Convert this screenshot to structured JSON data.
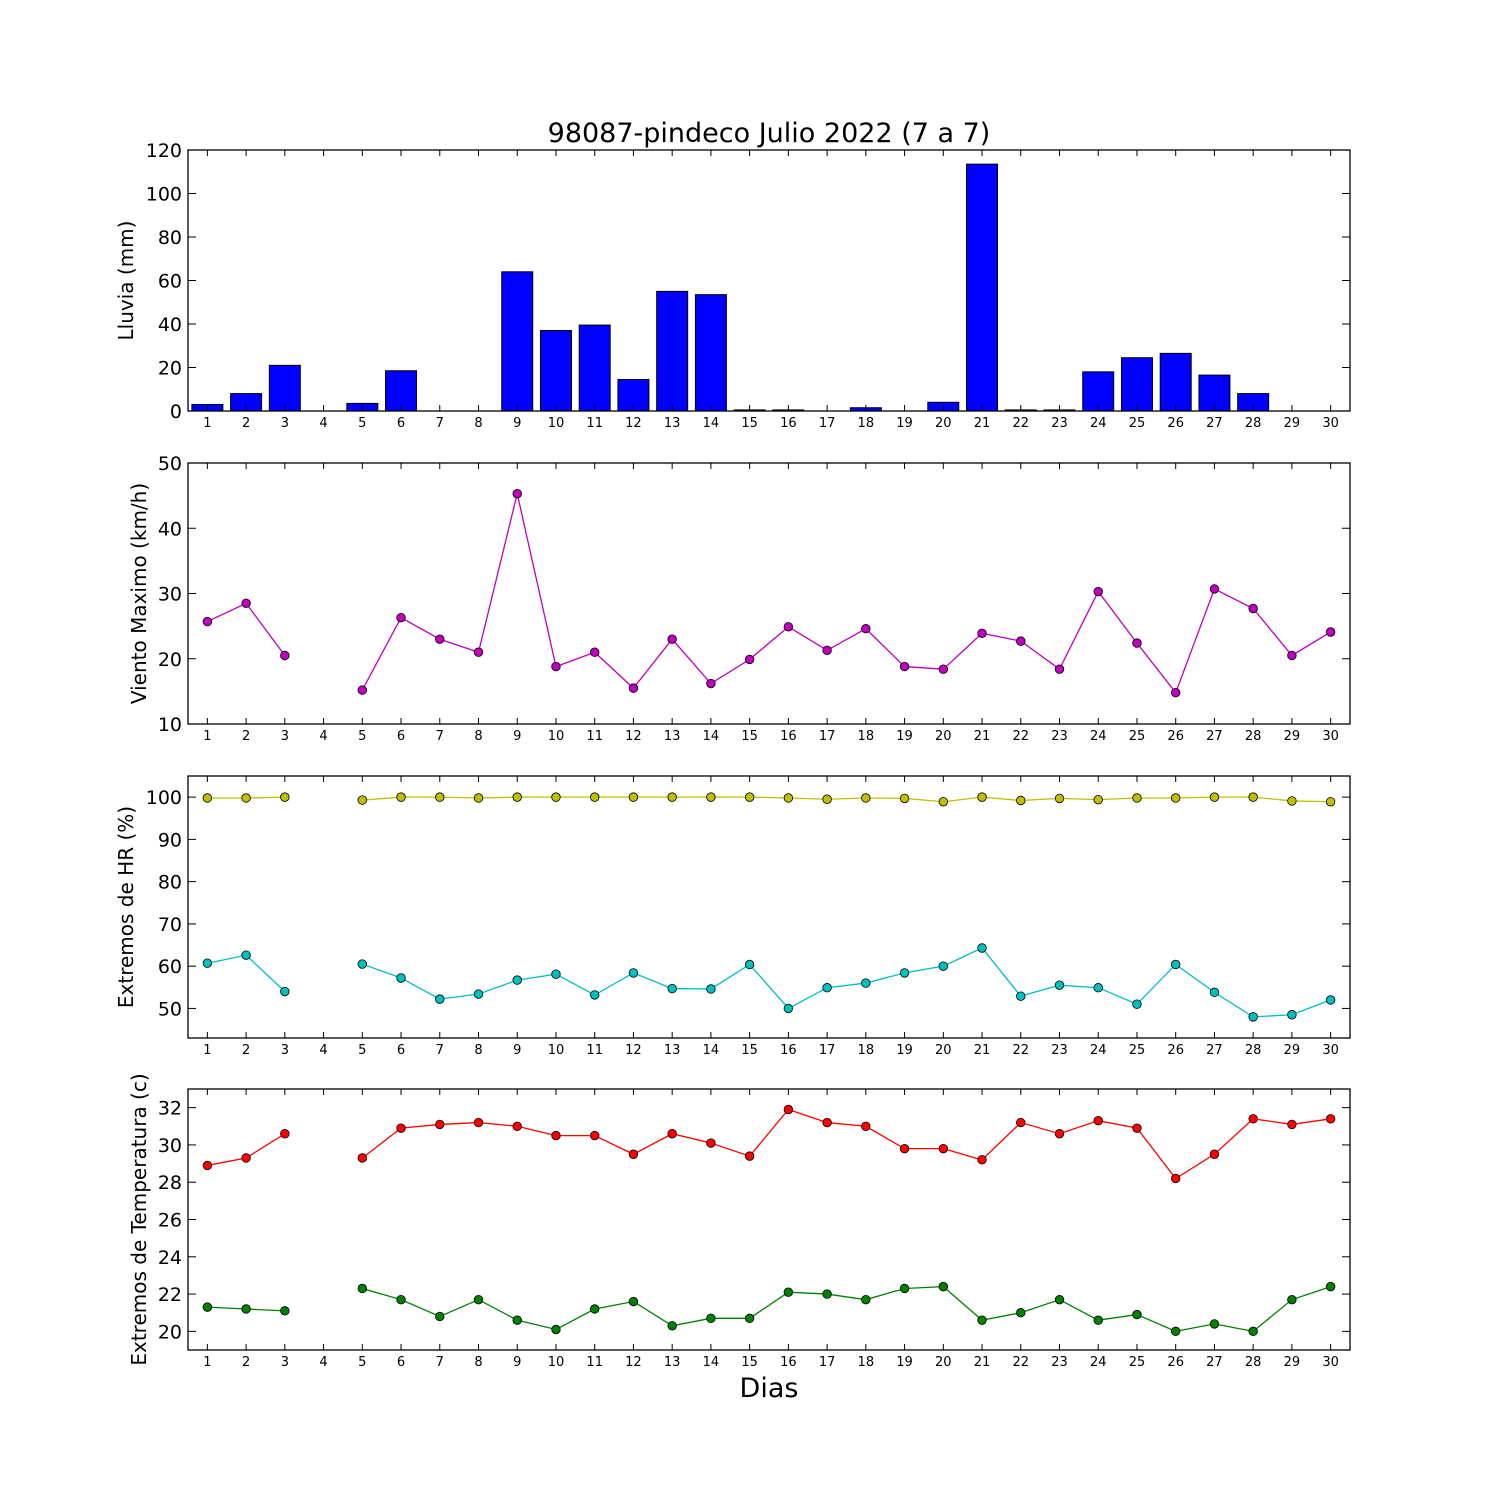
{
  "title": "98087-pindeco Julio 2022  (7 a 7)",
  "xlabel": "Dias",
  "chart_data": [
    {
      "type": "bar",
      "ylabel": "Lluvia (mm)",
      "ylim": [
        0,
        120
      ],
      "yticks": [
        0,
        20,
        40,
        60,
        80,
        100,
        120
      ],
      "x": [
        1,
        2,
        3,
        4,
        5,
        6,
        7,
        8,
        9,
        10,
        11,
        12,
        13,
        14,
        15,
        16,
        17,
        18,
        19,
        20,
        21,
        22,
        23,
        24,
        25,
        26,
        27,
        28,
        29,
        30
      ],
      "series": [
        {
          "color": "#0000ff",
          "values": [
            3,
            8,
            21,
            0,
            3.5,
            18.5,
            0,
            0,
            64,
            37,
            39.5,
            14.5,
            55,
            53.5,
            0.5,
            0.5,
            0,
            1.5,
            0,
            4,
            113.5,
            0.5,
            0.5,
            18,
            24.5,
            26.5,
            16.5,
            8,
            0,
            0
          ]
        }
      ]
    },
    {
      "type": "line",
      "ylabel": "Viento Maximo (km/h)",
      "ylim": [
        10,
        50
      ],
      "yticks": [
        10,
        20,
        30,
        40,
        50
      ],
      "x": [
        1,
        2,
        3,
        4,
        5,
        6,
        7,
        8,
        9,
        10,
        11,
        12,
        13,
        14,
        15,
        16,
        17,
        18,
        19,
        20,
        21,
        22,
        23,
        24,
        25,
        26,
        27,
        28,
        29,
        30
      ],
      "series": [
        {
          "color": "#bf00bf",
          "values": [
            25.7,
            28.5,
            20.5,
            null,
            15.2,
            26.3,
            23,
            21,
            45.3,
            18.8,
            21,
            15.5,
            23,
            16.2,
            19.9,
            24.9,
            21.3,
            24.6,
            18.8,
            18.4,
            23.9,
            22.7,
            18.4,
            30.3,
            22.4,
            14.8,
            30.7,
            27.7,
            20.5,
            24.1
          ]
        }
      ]
    },
    {
      "type": "line",
      "ylabel": "Extremos de HR (%)",
      "ylim": [
        43,
        105
      ],
      "yticks": [
        50,
        60,
        70,
        80,
        90,
        100
      ],
      "x": [
        1,
        2,
        3,
        4,
        5,
        6,
        7,
        8,
        9,
        10,
        11,
        12,
        13,
        14,
        15,
        16,
        17,
        18,
        19,
        20,
        21,
        22,
        23,
        24,
        25,
        26,
        27,
        28,
        29,
        30
      ],
      "series": [
        {
          "color": "#bfbf00",
          "values": [
            99.8,
            99.8,
            100,
            null,
            99.3,
            100,
            100,
            99.8,
            100,
            100,
            100,
            100,
            100,
            100,
            100,
            99.8,
            99.5,
            99.8,
            99.7,
            98.9,
            100,
            99.2,
            99.7,
            99.4,
            99.8,
            99.8,
            100,
            100,
            99.1,
            98.9
          ]
        },
        {
          "color": "#00bfbf",
          "values": [
            60.7,
            62.6,
            54,
            null,
            60.5,
            57.2,
            52.2,
            53.4,
            56.7,
            58.1,
            53.2,
            58.4,
            54.7,
            54.6,
            60.4,
            50,
            54.9,
            56,
            58.4,
            60,
            64.3,
            52.9,
            55.5,
            54.9,
            51,
            60.4,
            53.8,
            48,
            48.5,
            52
          ]
        }
      ]
    },
    {
      "type": "line",
      "ylabel": "Extremos de Temperatura (c)",
      "ylim": [
        19,
        33
      ],
      "yticks": [
        20,
        22,
        24,
        26,
        28,
        30,
        32
      ],
      "x": [
        1,
        2,
        3,
        4,
        5,
        6,
        7,
        8,
        9,
        10,
        11,
        12,
        13,
        14,
        15,
        16,
        17,
        18,
        19,
        20,
        21,
        22,
        23,
        24,
        25,
        26,
        27,
        28,
        29,
        30
      ],
      "series": [
        {
          "color": "#ff0000",
          "values": [
            28.9,
            29.3,
            30.6,
            null,
            29.3,
            30.9,
            31.1,
            31.2,
            31,
            30.5,
            30.5,
            29.5,
            30.6,
            30.1,
            29.4,
            31.9,
            31.2,
            31,
            29.8,
            29.8,
            29.2,
            31.2,
            30.6,
            31.3,
            30.9,
            28.2,
            29.5,
            31.4,
            31.1,
            31.4
          ]
        },
        {
          "color": "#008000",
          "values": [
            21.3,
            21.2,
            21.1,
            null,
            22.3,
            21.7,
            20.8,
            21.7,
            20.6,
            20.1,
            21.2,
            21.6,
            20.3,
            20.7,
            20.7,
            22.1,
            22,
            21.7,
            22.3,
            22.4,
            20.6,
            21,
            21.7,
            20.6,
            20.9,
            20,
            20.4,
            20,
            21.7,
            22.4
          ]
        }
      ]
    }
  ]
}
